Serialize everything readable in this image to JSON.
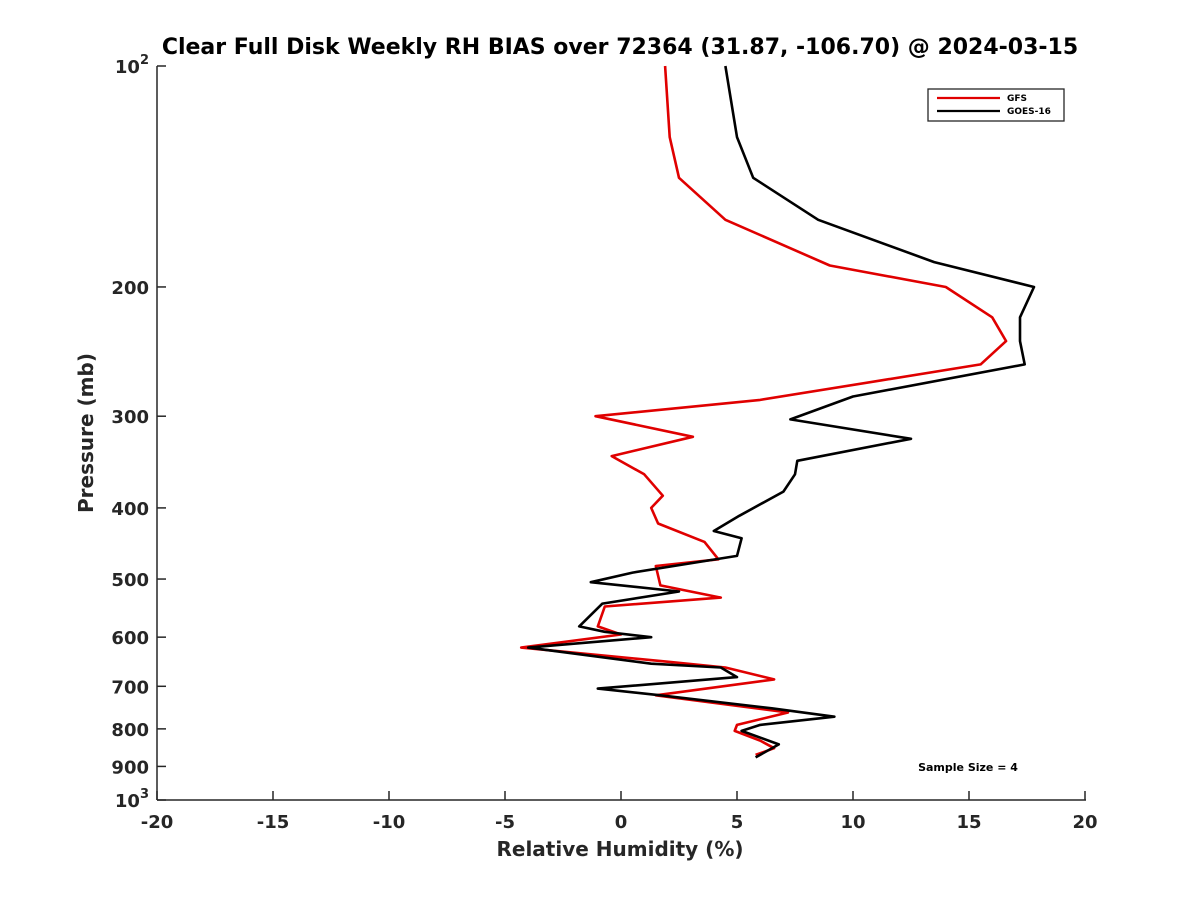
{
  "chart_data": {
    "type": "line",
    "title": "Clear Full Disk Weekly RH BIAS over 72364 (31.87, -106.70) @ 2024-03-15",
    "xlabel": "Relative Humidity (%)",
    "ylabel": "Pressure (mb)",
    "xlim": [
      -20,
      20
    ],
    "ylim": [
      100,
      1000
    ],
    "y_scale": "log",
    "y_reversed": true,
    "grid": false,
    "legend_position": "top-right",
    "x_ticks": [
      "-20",
      "-15",
      "-10",
      "-5",
      "0",
      "5",
      "10",
      "15",
      "20"
    ],
    "y_ticks": [
      {
        "value": 100,
        "base": "10",
        "exp": "2"
      },
      {
        "value": 200,
        "label": "200"
      },
      {
        "value": 300,
        "label": "300"
      },
      {
        "value": 400,
        "label": "400"
      },
      {
        "value": 500,
        "label": "500"
      },
      {
        "value": 600,
        "label": "600"
      },
      {
        "value": 700,
        "label": "700"
      },
      {
        "value": 800,
        "label": "800"
      },
      {
        "value": 900,
        "label": "900"
      },
      {
        "value": 1000,
        "base": "10",
        "exp": "3"
      }
    ],
    "series": [
      {
        "name": "GFS",
        "color": "#e00000",
        "points": [
          [
            1.9,
            100
          ],
          [
            2.1,
            125
          ],
          [
            2.5,
            142
          ],
          [
            4.5,
            162
          ],
          [
            9.0,
            187
          ],
          [
            14.0,
            200
          ],
          [
            16.0,
            220
          ],
          [
            16.6,
            237
          ],
          [
            15.5,
            255
          ],
          [
            6.0,
            285
          ],
          [
            -1.1,
            300
          ],
          [
            3.1,
            320
          ],
          [
            -0.4,
            340
          ],
          [
            1.0,
            360
          ],
          [
            1.8,
            385
          ],
          [
            1.3,
            400
          ],
          [
            1.6,
            420
          ],
          [
            3.6,
            445
          ],
          [
            4.2,
            470
          ],
          [
            1.5,
            480
          ],
          [
            1.7,
            510
          ],
          [
            4.3,
            530
          ],
          [
            -0.7,
            545
          ],
          [
            -1.0,
            580
          ],
          [
            0.0,
            595
          ],
          [
            -4.3,
            620
          ],
          [
            2.0,
            648
          ],
          [
            4.5,
            660
          ],
          [
            6.6,
            685
          ],
          [
            1.5,
            720
          ],
          [
            7.2,
            760
          ],
          [
            5.0,
            790
          ],
          [
            4.9,
            805
          ],
          [
            6.0,
            830
          ],
          [
            6.6,
            850
          ],
          [
            5.8,
            868
          ]
        ]
      },
      {
        "name": "GOES-16",
        "color": "#000000",
        "points": [
          [
            4.5,
            100
          ],
          [
            5.0,
            125
          ],
          [
            5.7,
            142
          ],
          [
            8.5,
            162
          ],
          [
            13.5,
            185
          ],
          [
            17.8,
            200
          ],
          [
            17.2,
            220
          ],
          [
            17.2,
            237
          ],
          [
            17.4,
            255
          ],
          [
            10.0,
            282
          ],
          [
            7.3,
            303
          ],
          [
            12.5,
            322
          ],
          [
            7.6,
            345
          ],
          [
            7.5,
            360
          ],
          [
            7.0,
            380
          ],
          [
            5.1,
            410
          ],
          [
            4.0,
            430
          ],
          [
            5.2,
            440
          ],
          [
            5.0,
            465
          ],
          [
            0.5,
            490
          ],
          [
            -1.3,
            505
          ],
          [
            2.5,
            520
          ],
          [
            -0.8,
            540
          ],
          [
            -1.8,
            580
          ],
          [
            -0.7,
            590
          ],
          [
            1.3,
            600
          ],
          [
            -4.0,
            620
          ],
          [
            1.3,
            652
          ],
          [
            4.3,
            660
          ],
          [
            5.0,
            680
          ],
          [
            -1.0,
            705
          ],
          [
            1.7,
            720
          ],
          [
            6.5,
            750
          ],
          [
            9.2,
            770
          ],
          [
            6.0,
            790
          ],
          [
            5.2,
            805
          ],
          [
            6.8,
            840
          ],
          [
            5.8,
            875
          ]
        ]
      }
    ],
    "annotations": [
      "Sample Size = 4"
    ]
  }
}
